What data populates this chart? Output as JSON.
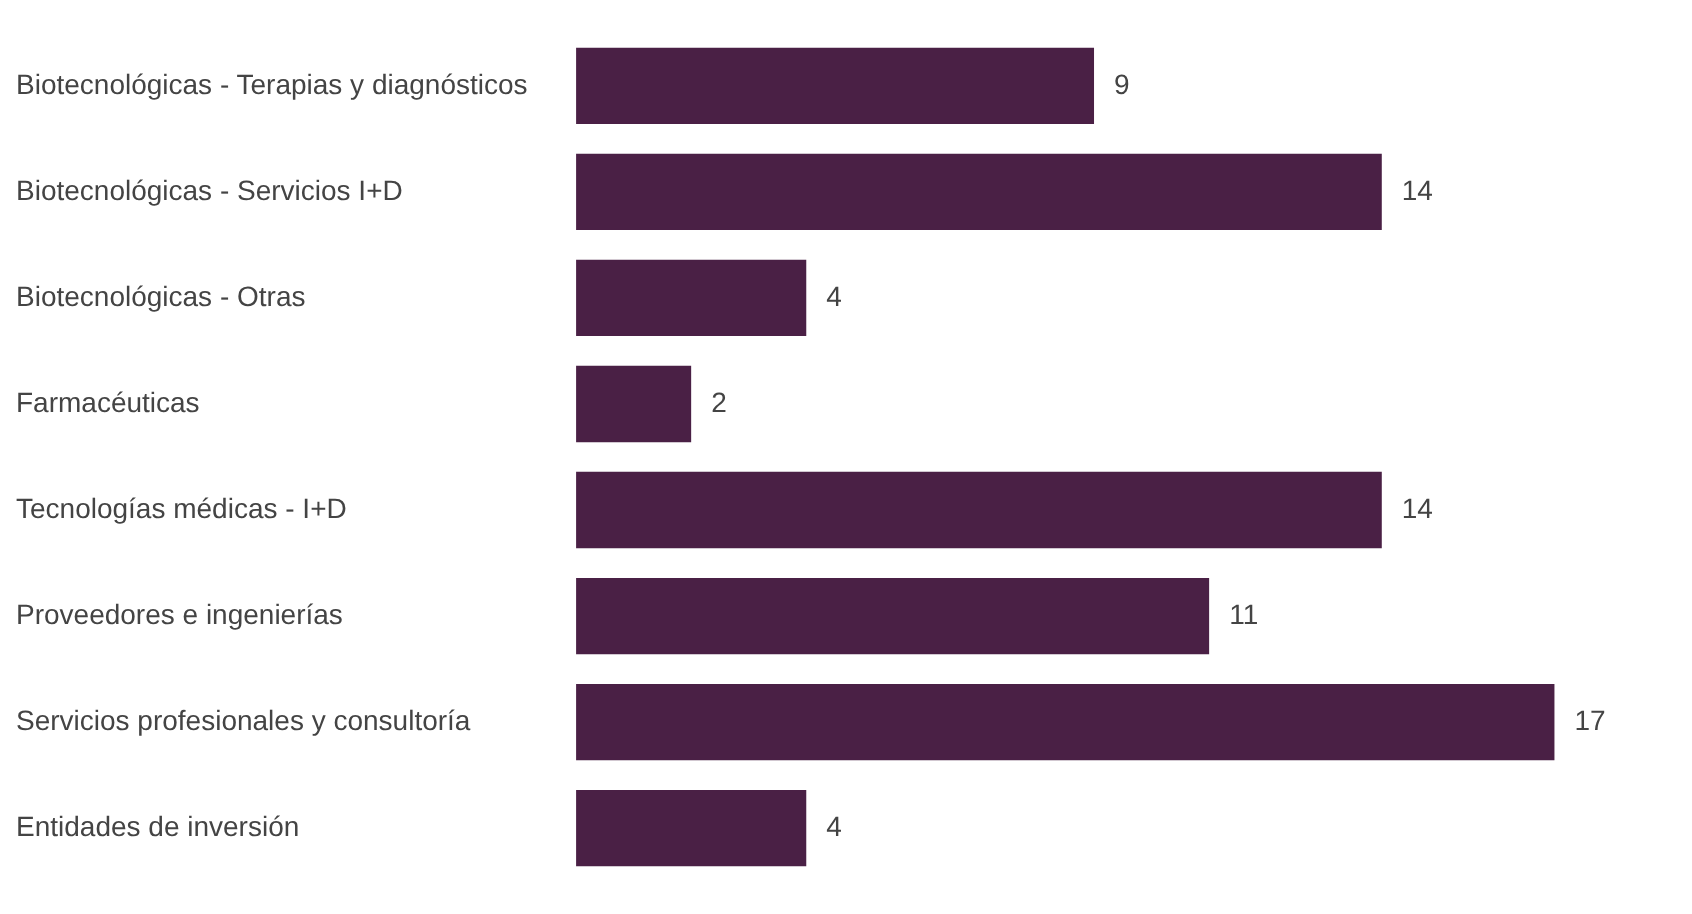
{
  "chart_data": {
    "type": "bar",
    "orientation": "horizontal",
    "categories": [
      "Biotecnológicas - Terapias y diagnósticos",
      "Biotecnológicas - Servicios I+D",
      "Biotecnológicas - Otras",
      "Farmacéuticas",
      "Tecnologías médicas - I+D",
      "Proveedores e ingenierías",
      "Servicios profesionales y consultoría",
      "Entidades de inversión"
    ],
    "values": [
      9,
      14,
      4,
      2,
      14,
      11,
      17,
      4
    ],
    "color": "#4a2045",
    "data_labels": true,
    "legend": false
  }
}
